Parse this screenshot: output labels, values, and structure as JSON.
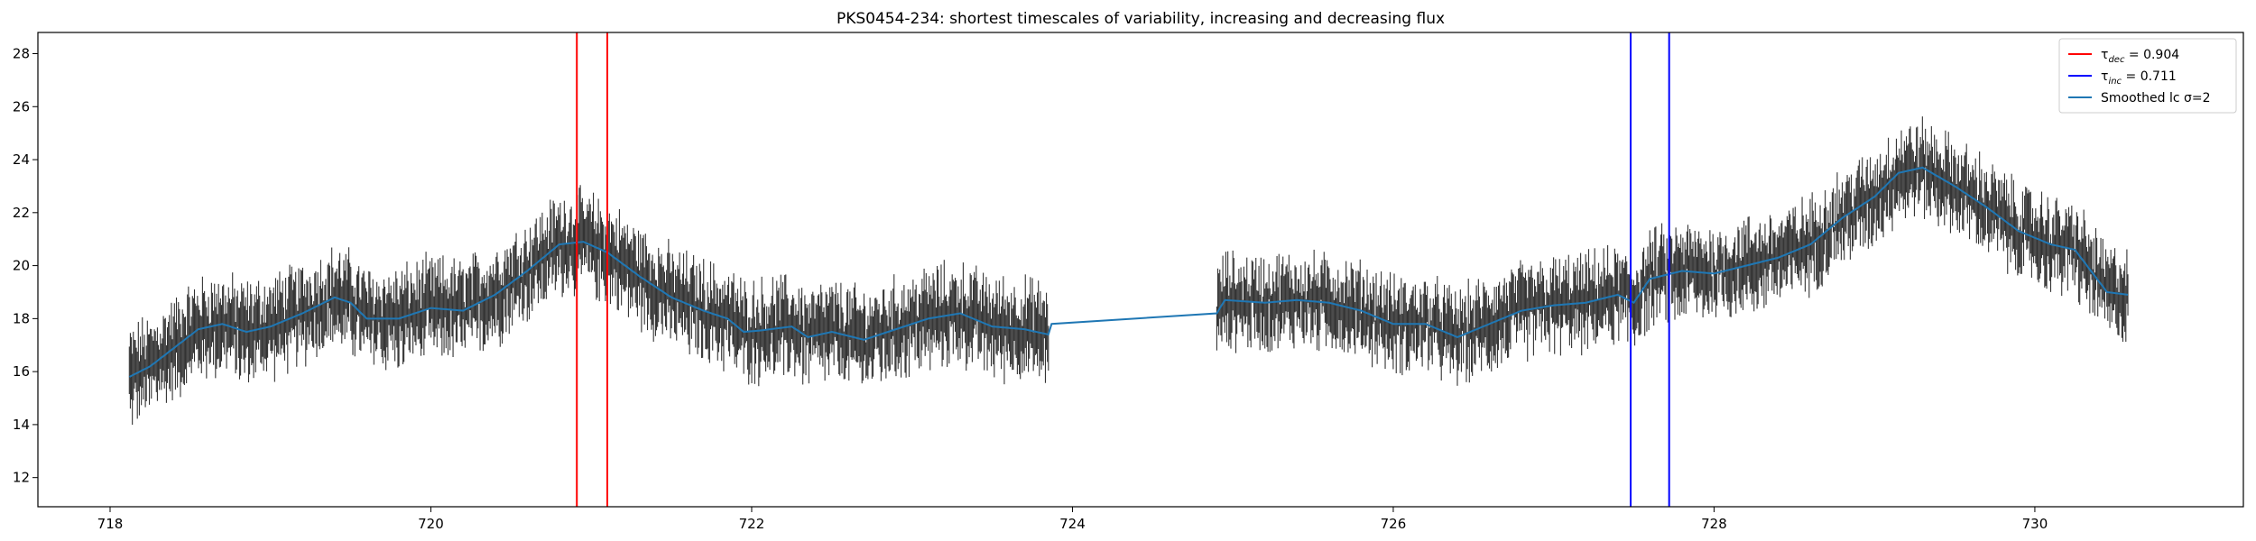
{
  "chart_data": {
    "type": "line",
    "title": "PKS0454-234: shortest timescales of variability, increasing and decreasing flux",
    "xlabel": "",
    "ylabel": "",
    "xlim": [
      717.55,
      731.3
    ],
    "ylim": [
      10.9,
      28.8
    ],
    "xticks": [
      718,
      720,
      722,
      724,
      726,
      728,
      730
    ],
    "yticks": [
      12,
      14,
      16,
      18,
      20,
      22,
      24,
      26,
      28
    ],
    "grid": false,
    "legend_position": "top-right",
    "legend": [
      {
        "label": "τdec = 0.904",
        "symbol": "τ",
        "subscript": "dec",
        "value_text": " = 0.904",
        "color": "#ff0000"
      },
      {
        "label": "τinc = 0.711",
        "symbol": "τ",
        "subscript": "inc",
        "value_text": " = 0.711",
        "color": "#0000ff"
      },
      {
        "label": "Smoothed lc σ=2",
        "symbol": "Smoothed lc ",
        "subscript": "",
        "value_text": "σ=2",
        "color": "#1f77b4"
      }
    ],
    "vlines": [
      {
        "x": 720.91,
        "color": "#ff0000",
        "series": "tau_dec"
      },
      {
        "x": 721.1,
        "color": "#ff0000",
        "series": "tau_dec"
      },
      {
        "x": 727.48,
        "color": "#0000ff",
        "series": "tau_inc"
      },
      {
        "x": 727.72,
        "color": "#0000ff",
        "series": "tau_inc"
      }
    ],
    "series": [
      {
        "name": "Smoothed lc σ=2",
        "color": "#1f77b4",
        "style": "line",
        "points": [
          [
            718.12,
            15.8
          ],
          [
            718.25,
            16.2
          ],
          [
            718.4,
            16.9
          ],
          [
            718.55,
            17.6
          ],
          [
            718.7,
            17.8
          ],
          [
            718.85,
            17.5
          ],
          [
            719.0,
            17.7
          ],
          [
            719.2,
            18.2
          ],
          [
            719.4,
            18.8
          ],
          [
            719.5,
            18.6
          ],
          [
            719.6,
            18.0
          ],
          [
            719.8,
            18.0
          ],
          [
            720.0,
            18.4
          ],
          [
            720.2,
            18.3
          ],
          [
            720.4,
            18.9
          ],
          [
            720.6,
            19.8
          ],
          [
            720.8,
            20.8
          ],
          [
            720.95,
            20.9
          ],
          [
            721.1,
            20.5
          ],
          [
            721.3,
            19.6
          ],
          [
            721.5,
            18.8
          ],
          [
            721.7,
            18.3
          ],
          [
            721.85,
            18.0
          ],
          [
            721.95,
            17.5
          ],
          [
            722.05,
            17.55
          ],
          [
            722.25,
            17.7
          ],
          [
            722.35,
            17.3
          ],
          [
            722.5,
            17.5
          ],
          [
            722.7,
            17.2
          ],
          [
            722.9,
            17.6
          ],
          [
            723.1,
            18.0
          ],
          [
            723.3,
            18.2
          ],
          [
            723.5,
            17.7
          ],
          [
            723.7,
            17.6
          ],
          [
            723.85,
            17.4
          ],
          [
            723.87,
            17.8
          ],
          [
            724.9,
            18.2
          ],
          [
            724.95,
            18.7
          ],
          [
            725.2,
            18.6
          ],
          [
            725.4,
            18.7
          ],
          [
            725.6,
            18.6
          ],
          [
            725.8,
            18.3
          ],
          [
            726.0,
            17.8
          ],
          [
            726.2,
            17.8
          ],
          [
            726.4,
            17.3
          ],
          [
            726.6,
            17.8
          ],
          [
            726.8,
            18.3
          ],
          [
            727.0,
            18.5
          ],
          [
            727.2,
            18.6
          ],
          [
            727.4,
            18.9
          ],
          [
            727.5,
            18.6
          ],
          [
            727.6,
            19.5
          ],
          [
            727.8,
            19.8
          ],
          [
            728.0,
            19.7
          ],
          [
            728.2,
            20.0
          ],
          [
            728.4,
            20.3
          ],
          [
            728.6,
            20.8
          ],
          [
            728.8,
            21.8
          ],
          [
            729.0,
            22.6
          ],
          [
            729.15,
            23.5
          ],
          [
            729.3,
            23.7
          ],
          [
            729.5,
            23.0
          ],
          [
            729.7,
            22.2
          ],
          [
            729.9,
            21.3
          ],
          [
            730.1,
            20.8
          ],
          [
            730.25,
            20.6
          ],
          [
            730.35,
            19.8
          ],
          [
            730.45,
            19.0
          ],
          [
            730.58,
            18.9
          ]
        ]
      },
      {
        "name": "",
        "color": "#333333",
        "style": "errorbar",
        "segments": [
          {
            "x0": 718.12,
            "x1": 723.85,
            "err": 1.1
          },
          {
            "x0": 724.9,
            "x1": 730.58,
            "err": 1.0
          }
        ]
      }
    ]
  }
}
